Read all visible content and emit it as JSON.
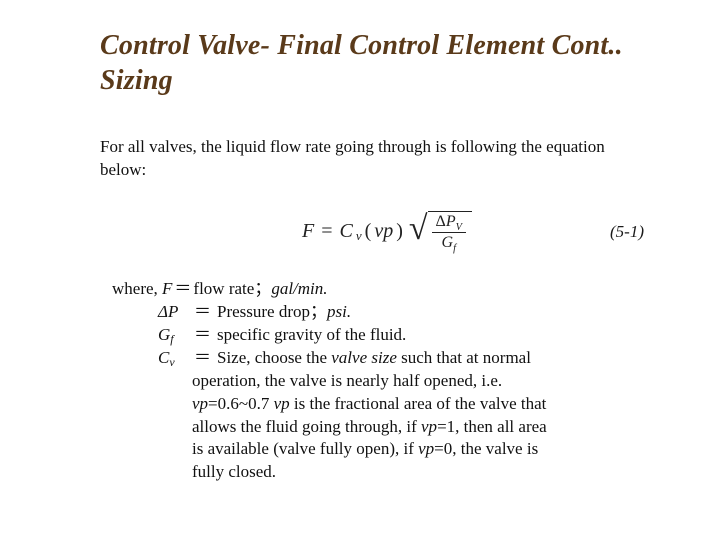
{
  "title_line1": "Control Valve- Final Control Element Cont..",
  "title_line2": "Sizing",
  "lead": "For all valves, the liquid flow rate going through is following the equation below:",
  "equation": {
    "lhs": "F",
    "eq": "=",
    "cv": "C",
    "cv_sub": "v",
    "vp_open": "(",
    "vp": "vp",
    "vp_close": ")",
    "delta": "Δ",
    "P": "P",
    "V": "V",
    "G": "G",
    "f": "f",
    "number": "(5-1)"
  },
  "where_label": "where,",
  "defs": {
    "F": {
      "sym": "F",
      "text_a": "flow rate",
      "sep": "；",
      "unit": "gal/min."
    },
    "dP": {
      "delta": "Δ",
      "P": "P",
      "text_a": "Pressure drop",
      "sep": "；",
      "unit": "psi."
    },
    "Gf": {
      "G": "G",
      "f": "f",
      "text": "specific gravity of the fluid."
    },
    "Cv": {
      "C": "C",
      "v": "v",
      "pre": "Size, choose the ",
      "valve_size": "valve size",
      "post": " such that at normal",
      "line2a": "operation, the valve is nearly half opened, i.e.",
      "vp_eq": "vp",
      "range": "=0.6~0.7 ",
      "vp2": "vp",
      "line3b": " is the fractional area of the valve that",
      "line4": "allows the fluid going through, if ",
      "vp3": "vp",
      "eq1": "=1, then all area",
      "line5": "is available (valve fully open), if ",
      "vp4": "vp",
      "eq0": "=0, the valve is",
      "line6": "fully closed."
    }
  },
  "colors": {
    "title": "#5a3a1a",
    "text": "#111111",
    "background": "#ffffff"
  },
  "fontsizes": {
    "title_pt": 28,
    "body_pt": 17,
    "equation_pt": 20
  }
}
